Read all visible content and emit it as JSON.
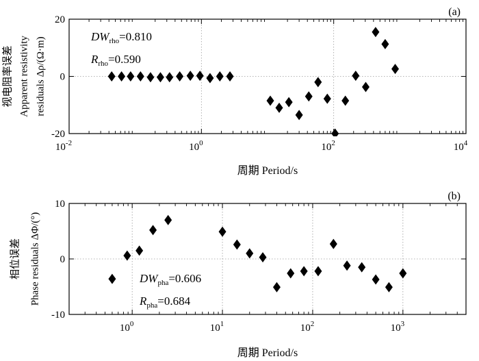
{
  "chart_data": [
    {
      "type": "scatter",
      "panel_label": "(a)",
      "xlabel": "周期 Period/s",
      "ylabel_lines": [
        "视电阻率误差",
        "Apparent resistivity",
        "residuals Δρ/(Ω·m)"
      ],
      "xscale": "log",
      "xlim": [
        0.01,
        10000
      ],
      "ylim": [
        -20,
        20
      ],
      "x_tick_values": [
        0.01,
        1,
        100,
        10000
      ],
      "x_tick_labels": [
        {
          "base": "10",
          "exp": "-2"
        },
        {
          "base": "10",
          "exp": "0"
        },
        {
          "base": "10",
          "exp": "2"
        },
        {
          "base": "10",
          "exp": "4"
        }
      ],
      "y_ticks": [
        -20,
        0,
        20
      ],
      "grid": true,
      "marker": "diamond",
      "annotations": [
        {
          "main": "DW",
          "sub": "rho",
          "value": "=0.810"
        },
        {
          "main": "R",
          "sub": "rho",
          "value": "=0.590"
        }
      ],
      "points": [
        {
          "x": 0.044,
          "y": 0.0
        },
        {
          "x": 0.062,
          "y": 0.0
        },
        {
          "x": 0.085,
          "y": 0.0
        },
        {
          "x": 0.12,
          "y": 0.0
        },
        {
          "x": 0.17,
          "y": -0.3
        },
        {
          "x": 0.24,
          "y": -0.3
        },
        {
          "x": 0.33,
          "y": -0.3
        },
        {
          "x": 0.47,
          "y": 0.0
        },
        {
          "x": 0.68,
          "y": 0.2
        },
        {
          "x": 0.95,
          "y": 0.2
        },
        {
          "x": 1.35,
          "y": -0.6
        },
        {
          "x": 1.9,
          "y": 0.0
        },
        {
          "x": 2.7,
          "y": 0.0
        },
        {
          "x": 11,
          "y": -8.5
        },
        {
          "x": 15,
          "y": -11
        },
        {
          "x": 21,
          "y": -9
        },
        {
          "x": 30,
          "y": -13.5
        },
        {
          "x": 42,
          "y": -7
        },
        {
          "x": 58,
          "y": -2
        },
        {
          "x": 80,
          "y": -7.8
        },
        {
          "x": 105,
          "y": -20
        },
        {
          "x": 150,
          "y": -8.5
        },
        {
          "x": 215,
          "y": 0.2
        },
        {
          "x": 305,
          "y": -3.7
        },
        {
          "x": 430,
          "y": 15.5
        },
        {
          "x": 600,
          "y": 11.3
        },
        {
          "x": 850,
          "y": 2.6
        }
      ]
    },
    {
      "type": "scatter",
      "panel_label": "(b)",
      "xlabel": "周期 Period/s",
      "ylabel_lines": [
        "相位误差",
        "Phase residuals ΔΦ/(°)"
      ],
      "xscale": "log",
      "xlim": [
        0.2,
        5000
      ],
      "ylim": [
        -10,
        10
      ],
      "x_tick_values": [
        1,
        10,
        100,
        1000
      ],
      "x_tick_labels": [
        {
          "base": "10",
          "exp": "0"
        },
        {
          "base": "10",
          "exp": "1"
        },
        {
          "base": "10",
          "exp": "2"
        },
        {
          "base": "10",
          "exp": "3"
        }
      ],
      "y_ticks": [
        -10,
        0,
        10
      ],
      "grid": true,
      "marker": "diamond",
      "annotations": [
        {
          "main": "DW",
          "sub": "pha",
          "value": "=0.606"
        },
        {
          "main": "R",
          "sub": "pha",
          "value": "=0.684"
        }
      ],
      "points": [
        {
          "x": 0.6,
          "y": -3.6
        },
        {
          "x": 0.88,
          "y": 0.6
        },
        {
          "x": 1.2,
          "y": 1.5
        },
        {
          "x": 1.7,
          "y": 5.2
        },
        {
          "x": 2.5,
          "y": 7.0
        },
        {
          "x": 10,
          "y": 4.9
        },
        {
          "x": 14.5,
          "y": 2.6
        },
        {
          "x": 20,
          "y": 1.0
        },
        {
          "x": 28,
          "y": 0.3
        },
        {
          "x": 40,
          "y": -5.1
        },
        {
          "x": 57,
          "y": -2.6
        },
        {
          "x": 80,
          "y": -2.2
        },
        {
          "x": 115,
          "y": -2.2
        },
        {
          "x": 170,
          "y": 2.7
        },
        {
          "x": 240,
          "y": -1.2
        },
        {
          "x": 350,
          "y": -1.5
        },
        {
          "x": 500,
          "y": -3.7
        },
        {
          "x": 700,
          "y": -5.1
        },
        {
          "x": 1000,
          "y": -2.6
        }
      ]
    }
  ]
}
